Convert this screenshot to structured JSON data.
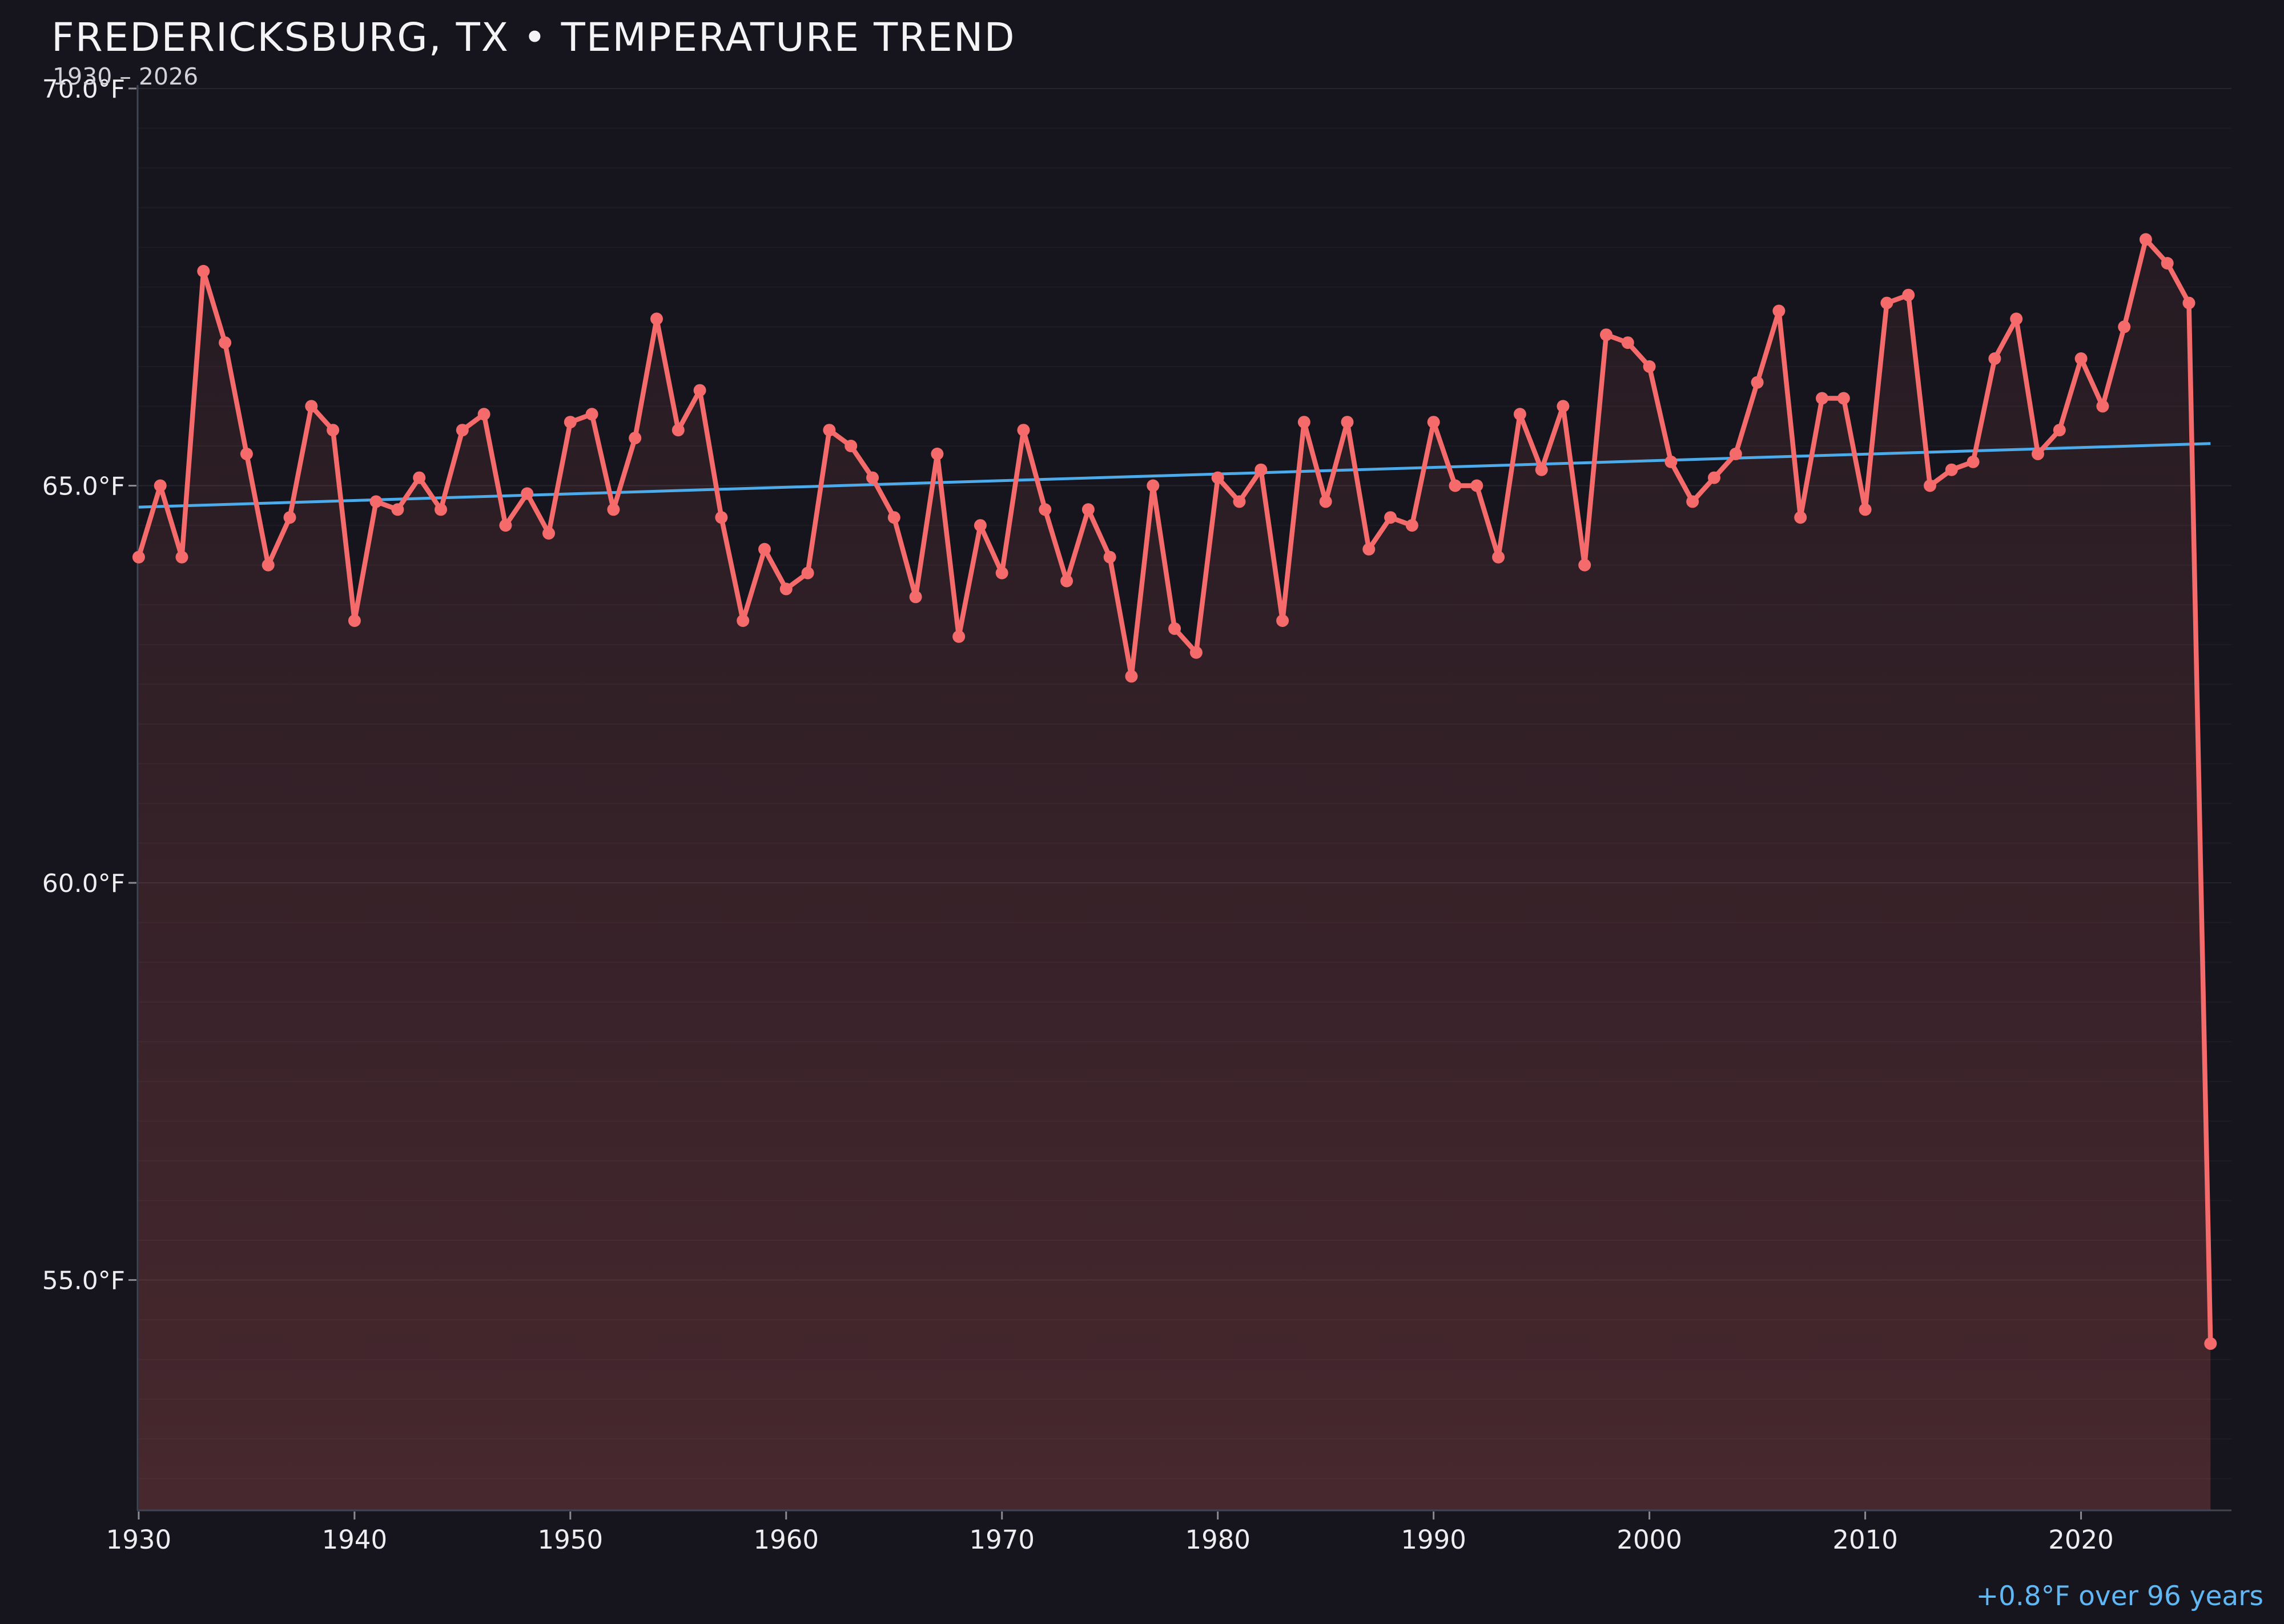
{
  "header": {
    "title": "FREDERICKSBURG, TX • TEMPERATURE TREND",
    "subtitle": "1930 – 2026"
  },
  "footer": {
    "trend_note": "+0.8°F over 96 years"
  },
  "colors": {
    "background": "#16151d",
    "line": "#f56b6b",
    "marker": "#f56b6b",
    "fill_top": "rgba(245,107,107,0.05)",
    "fill_bottom": "rgba(245,107,107,0.22)",
    "trend": "#4dabea",
    "note_text": "#61b7f3",
    "title_text": "#f4f4f6",
    "subtitle_text": "#d2d2d8",
    "tick_label": "#eeeef1",
    "spine": "#3f4552",
    "tick_mark": "#8a8a92",
    "grid_major": "rgba(255,255,255,0.07)",
    "grid_minor": "rgba(255,255,255,0.032)"
  },
  "chart_data": {
    "type": "line",
    "title": "FREDERICKSBURG, TX • TEMPERATURE TREND",
    "subtitle": "1930 – 2026",
    "xlabel": "",
    "ylabel": "°F",
    "legend": "none",
    "grid": {
      "on": true,
      "minor_step_f": 0.5
    },
    "xlim": [
      1929.95,
      2026.97
    ],
    "ylim": [
      52.1,
      70.0
    ],
    "x_ticks": [
      1930,
      1940,
      1950,
      1960,
      1970,
      1980,
      1990,
      2000,
      2010,
      2020
    ],
    "y_ticks": [
      {
        "v": 55,
        "label": "55.0°F"
      },
      {
        "v": 60,
        "label": "60.0°F"
      },
      {
        "v": 65,
        "label": "65.0°F"
      },
      {
        "v": 70,
        "label": "70.0°F"
      }
    ],
    "years": [
      1930,
      1931,
      1932,
      1933,
      1934,
      1935,
      1936,
      1937,
      1938,
      1939,
      1940,
      1941,
      1942,
      1943,
      1944,
      1945,
      1946,
      1947,
      1948,
      1949,
      1950,
      1951,
      1952,
      1953,
      1954,
      1955,
      1956,
      1957,
      1958,
      1959,
      1960,
      1961,
      1962,
      1963,
      1964,
      1965,
      1966,
      1967,
      1968,
      1969,
      1970,
      1971,
      1972,
      1973,
      1974,
      1975,
      1976,
      1977,
      1978,
      1979,
      1980,
      1981,
      1982,
      1983,
      1984,
      1985,
      1986,
      1987,
      1988,
      1989,
      1990,
      1991,
      1992,
      1993,
      1994,
      1995,
      1996,
      1997,
      1998,
      1999,
      2000,
      2001,
      2002,
      2003,
      2004,
      2005,
      2006,
      2007,
      2008,
      2009,
      2010,
      2011,
      2012,
      2013,
      2014,
      2015,
      2016,
      2017,
      2018,
      2019,
      2020,
      2021,
      2022,
      2023,
      2024,
      2025,
      2026
    ],
    "values_f": [
      64.1,
      65.0,
      64.1,
      67.7,
      66.8,
      65.4,
      64.0,
      64.6,
      66.0,
      65.7,
      63.3,
      64.8,
      64.7,
      65.1,
      64.7,
      65.7,
      65.9,
      64.5,
      64.9,
      64.4,
      65.8,
      65.9,
      64.7,
      65.6,
      67.1,
      65.7,
      66.2,
      64.6,
      63.3,
      64.2,
      63.7,
      63.9,
      65.7,
      65.5,
      65.1,
      64.6,
      63.6,
      65.4,
      63.1,
      64.5,
      63.9,
      65.7,
      64.7,
      63.8,
      64.7,
      64.1,
      62.6,
      65.0,
      63.2,
      62.9,
      65.1,
      64.8,
      65.2,
      63.3,
      65.8,
      64.8,
      65.8,
      64.2,
      64.6,
      64.5,
      65.8,
      65.0,
      65.0,
      64.1,
      65.9,
      65.2,
      66.0,
      64.0,
      66.9,
      66.8,
      66.5,
      65.3,
      64.8,
      65.1,
      65.4,
      66.3,
      67.2,
      64.6,
      66.1,
      66.1,
      64.7,
      67.3,
      67.4,
      65.0,
      65.2,
      65.3,
      66.6,
      67.1,
      65.4,
      65.7,
      66.6,
      66.0,
      67.0,
      68.1,
      67.8,
      67.3,
      54.2
    ],
    "trend_line": {
      "x0": 1930,
      "y0": 64.73,
      "x1": 2026,
      "y1": 65.53,
      "label": "+0.8°F over 96 years"
    }
  }
}
